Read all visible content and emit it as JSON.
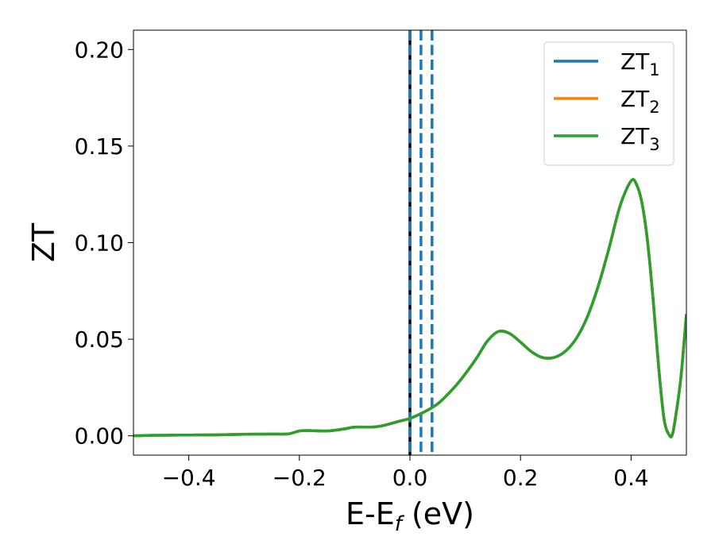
{
  "chart_data": {
    "type": "line",
    "xlabel": "E-E",
    "xlabel_sub": "f",
    "xlabel_unit": " (eV)",
    "ylabel": "ZT",
    "xlim": [
      -0.5,
      0.5
    ],
    "ylim": [
      -0.01,
      0.21
    ],
    "xticks": [
      -0.4,
      -0.2,
      0.0,
      0.2,
      0.4
    ],
    "xtick_labels": [
      "−0.4",
      "−0.2",
      "0.0",
      "0.2",
      "0.4"
    ],
    "yticks": [
      0.0,
      0.05,
      0.1,
      0.15,
      0.2
    ],
    "ytick_labels": [
      "0.00",
      "0.05",
      "0.10",
      "0.15",
      "0.20"
    ],
    "grid": false,
    "legend_position": "top-right",
    "x": [
      -0.5,
      -0.45,
      -0.4,
      -0.35,
      -0.3,
      -0.25,
      -0.22,
      -0.2,
      -0.18,
      -0.15,
      -0.12,
      -0.1,
      -0.07,
      -0.05,
      -0.02,
      0.0,
      0.02,
      0.05,
      0.08,
      0.1,
      0.12,
      0.14,
      0.16,
      0.18,
      0.2,
      0.22,
      0.24,
      0.26,
      0.28,
      0.3,
      0.32,
      0.34,
      0.36,
      0.38,
      0.4,
      0.41,
      0.42,
      0.43,
      0.44,
      0.45,
      0.46,
      0.47,
      0.475,
      0.48,
      0.49,
      0.5
    ],
    "series": [
      {
        "name": "ZT",
        "sub": "1",
        "color": "#1f77b4",
        "values": [
          0.0,
          0.0003,
          0.0004,
          0.0005,
          0.0008,
          0.0009,
          0.001,
          0.0025,
          0.0027,
          0.0025,
          0.0035,
          0.0045,
          0.0045,
          0.0052,
          0.0075,
          0.009,
          0.0115,
          0.0165,
          0.025,
          0.032,
          0.04,
          0.049,
          0.054,
          0.053,
          0.0485,
          0.0435,
          0.0405,
          0.0405,
          0.0435,
          0.05,
          0.061,
          0.077,
          0.097,
          0.119,
          0.132,
          0.13,
          0.12,
          0.1,
          0.07,
          0.035,
          0.008,
          0.0,
          0.001,
          0.009,
          0.03,
          0.063
        ]
      },
      {
        "name": "ZT",
        "sub": "2",
        "color": "#ff7f0e",
        "values": [
          0.0,
          0.0003,
          0.0004,
          0.0005,
          0.0008,
          0.0009,
          0.001,
          0.0025,
          0.0027,
          0.0025,
          0.0035,
          0.0045,
          0.0045,
          0.0052,
          0.0075,
          0.009,
          0.0115,
          0.0165,
          0.025,
          0.032,
          0.04,
          0.049,
          0.054,
          0.053,
          0.0485,
          0.0435,
          0.0405,
          0.0405,
          0.0435,
          0.05,
          0.061,
          0.077,
          0.097,
          0.119,
          0.132,
          0.13,
          0.12,
          0.1,
          0.07,
          0.035,
          0.008,
          0.0,
          0.001,
          0.009,
          0.03,
          0.063
        ]
      },
      {
        "name": "ZT",
        "sub": "3",
        "color": "#2ca02c",
        "values": [
          0.0,
          0.0003,
          0.0004,
          0.0005,
          0.0008,
          0.0009,
          0.001,
          0.0025,
          0.0027,
          0.0025,
          0.0035,
          0.0045,
          0.0045,
          0.0052,
          0.0075,
          0.009,
          0.0115,
          0.0165,
          0.025,
          0.032,
          0.04,
          0.049,
          0.054,
          0.053,
          0.0485,
          0.0435,
          0.0405,
          0.0405,
          0.0435,
          0.05,
          0.061,
          0.077,
          0.097,
          0.119,
          0.132,
          0.13,
          0.12,
          0.1,
          0.07,
          0.035,
          0.008,
          0.0,
          0.001,
          0.009,
          0.03,
          0.063
        ]
      }
    ],
    "vertical_lines": [
      {
        "x": 0.0,
        "color": "#000000",
        "style": "solid"
      },
      {
        "x": 0.0,
        "color": "#1f77b4",
        "style": "dashed"
      },
      {
        "x": 0.02,
        "color": "#1f77b4",
        "style": "dashed"
      },
      {
        "x": 0.04,
        "color": "#1f77b4",
        "style": "dashed"
      }
    ]
  }
}
